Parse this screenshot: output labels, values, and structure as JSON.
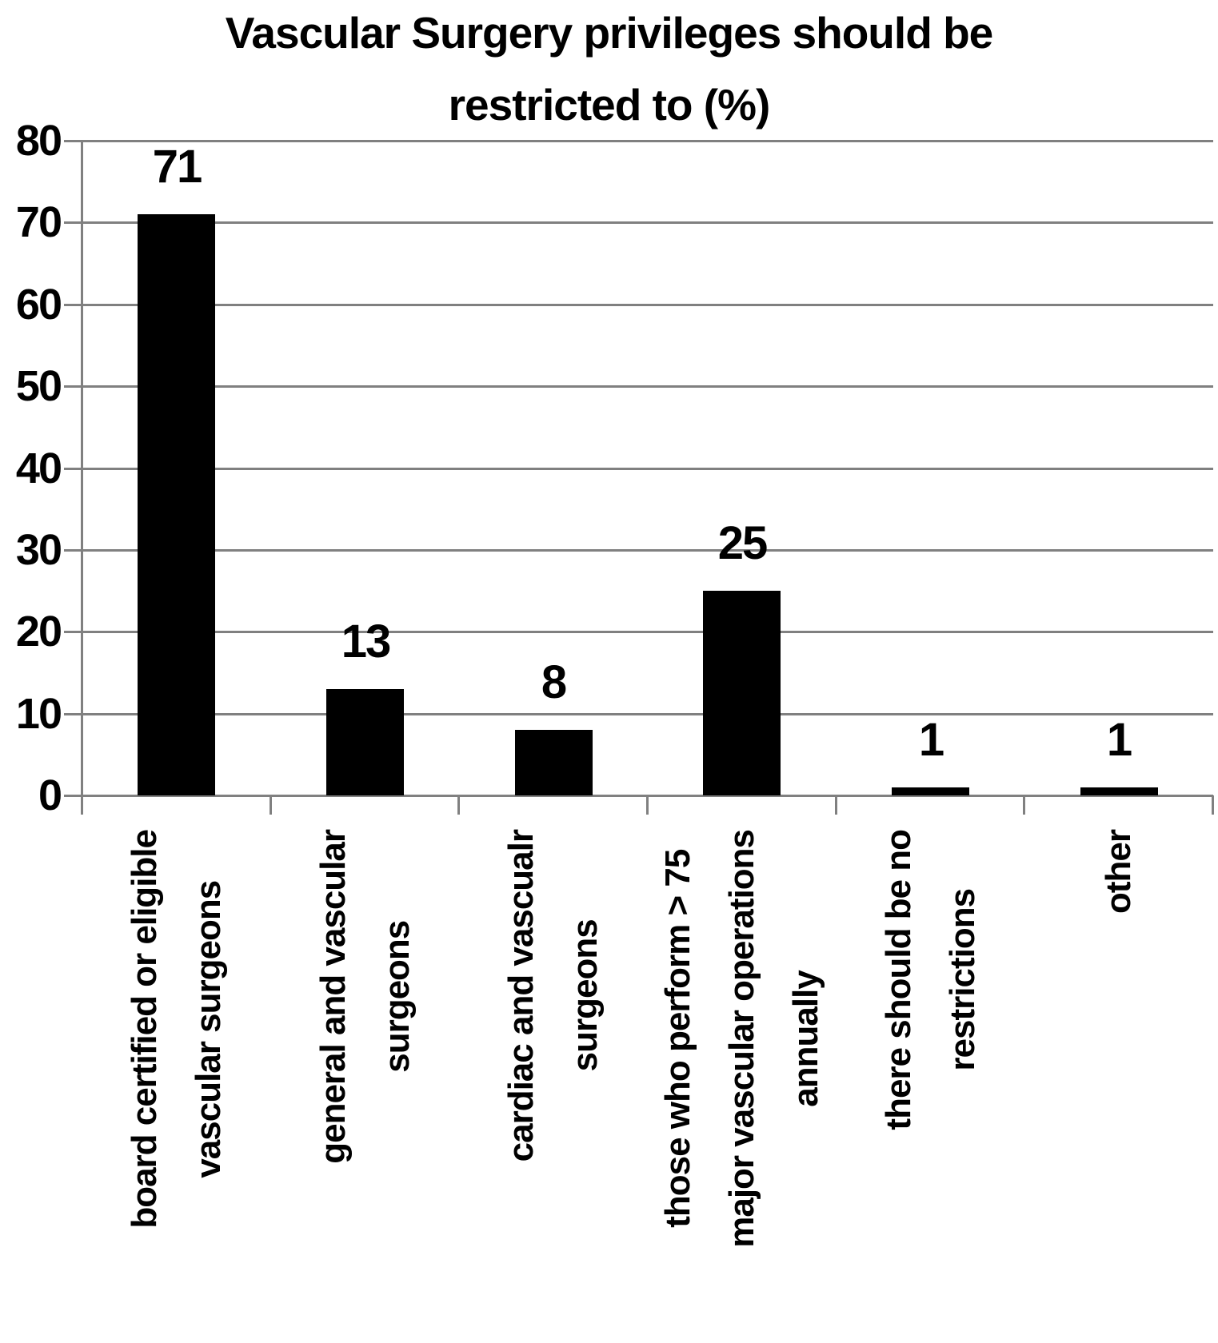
{
  "chart_data": {
    "type": "bar",
    "title": "Vascular Surgery privileges should be restricted to (%)",
    "title_line1": "Vascular Surgery privileges should be",
    "title_line2": "restricted to (%)",
    "categories": [
      "board certified or eligible vascular surgeons",
      "general and vascular surgeons",
      "cardiac and vascualr surgeons",
      "those who perform > 75 major vascular operations annually",
      "there should be no restrictions",
      "other"
    ],
    "category_lines": [
      [
        "board certified or eligible",
        "vascular surgeons"
      ],
      [
        "general and vascular",
        "surgeons"
      ],
      [
        "cardiac and vascualr",
        "surgeons"
      ],
      [
        "those who perform > 75",
        "major vascular operations",
        "annually"
      ],
      [
        "there should be no",
        "restrictions"
      ],
      [
        "other"
      ]
    ],
    "values": [
      71,
      13,
      8,
      25,
      1,
      1
    ],
    "value_labels": [
      "71",
      "13",
      "8",
      "25",
      "1",
      "1"
    ],
    "ylim": [
      0,
      80
    ],
    "ytick_step": 10,
    "ytick_labels": [
      "0",
      "10",
      "20",
      "30",
      "40",
      "50",
      "60",
      "70",
      "80"
    ],
    "bar_color": "#000000",
    "gridline_color": "#808080",
    "text_color": "#000000",
    "grid": true,
    "legend": false
  }
}
